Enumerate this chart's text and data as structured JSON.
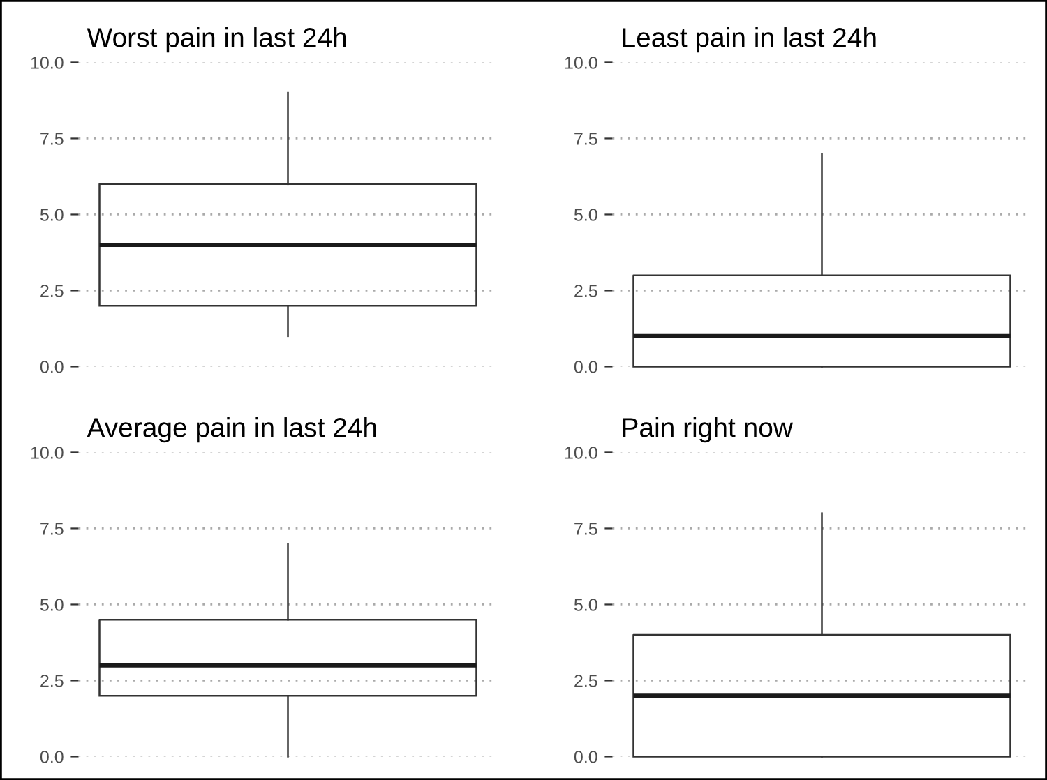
{
  "chart_data": [
    {
      "type": "box",
      "title": "Worst pain in last 24h",
      "categories": [
        null
      ],
      "boxes": [
        {
          "low": 1,
          "q1": 2,
          "median": 4,
          "q3": 6,
          "high": 9
        }
      ],
      "ylim": [
        0,
        10
      ],
      "yticks": [
        {
          "value": 0,
          "label": "0.0"
        },
        {
          "value": 2.5,
          "label": "2.5"
        },
        {
          "value": 5,
          "label": "5.0"
        },
        {
          "value": 7.5,
          "label": "7.5"
        },
        {
          "value": 10,
          "label": "10.0"
        }
      ],
      "grid": "y",
      "tick_labels": "y"
    },
    {
      "type": "box",
      "title": "Least pain in last 24h",
      "categories": [
        null
      ],
      "boxes": [
        {
          "low": 0,
          "q1": 0,
          "median": 1,
          "q3": 3,
          "high": 7
        }
      ],
      "ylim": [
        0,
        10
      ],
      "yticks": [
        {
          "value": 0,
          "label": "0.0"
        },
        {
          "value": 2.5,
          "label": "2.5"
        },
        {
          "value": 5,
          "label": "5.0"
        },
        {
          "value": 7.5,
          "label": "7.5"
        },
        {
          "value": 10,
          "label": "10.0"
        }
      ],
      "grid": "y",
      "tick_labels": "y"
    },
    {
      "type": "box",
      "title": "Average pain in last 24h",
      "categories": [
        null
      ],
      "boxes": [
        {
          "low": 0,
          "q1": 2,
          "median": 3,
          "q3": 4.5,
          "high": 7
        }
      ],
      "ylim": [
        0,
        10
      ],
      "yticks": [
        {
          "value": 0,
          "label": "0.0"
        },
        {
          "value": 2.5,
          "label": "2.5"
        },
        {
          "value": 5,
          "label": "5.0"
        },
        {
          "value": 7.5,
          "label": "7.5"
        },
        {
          "value": 10,
          "label": "10.0"
        }
      ],
      "grid": "y",
      "tick_labels": "y"
    },
    {
      "type": "box",
      "title": "Pain right now",
      "categories": [
        null
      ],
      "boxes": [
        {
          "low": 0,
          "q1": 0,
          "median": 2,
          "q3": 4,
          "high": 8
        }
      ],
      "ylim": [
        0,
        10
      ],
      "yticks": [
        {
          "value": 0,
          "label": "0.0"
        },
        {
          "value": 2.5,
          "label": "2.5"
        },
        {
          "value": 5,
          "label": "5.0"
        },
        {
          "value": 7.5,
          "label": "7.5"
        },
        {
          "value": 10,
          "label": "10.0"
        }
      ],
      "grid": "y",
      "tick_labels": "y"
    }
  ]
}
